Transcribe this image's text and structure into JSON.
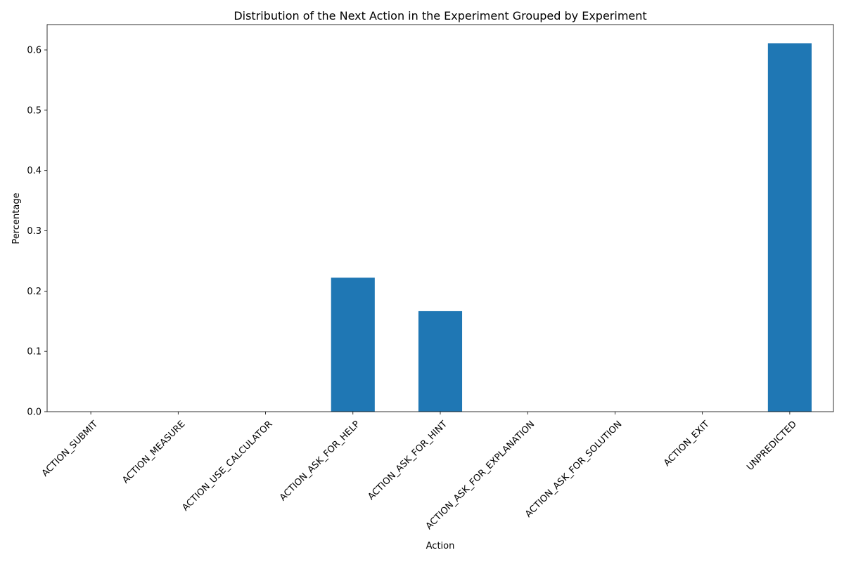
{
  "chart_data": {
    "type": "bar",
    "title": "Distribution of the Next Action in the Experiment Grouped by Experiment",
    "xlabel": "Action",
    "ylabel": "Percentage",
    "categories": [
      "ACTION_SUBMIT",
      "ACTION_MEASURE",
      "ACTION_USE_CALCULATOR",
      "ACTION_ASK_FOR_HELP",
      "ACTION_ASK_FOR_HINT",
      "ACTION_ASK_FOR_EXPLANATION",
      "ACTION_ASK_FOR_SOLUTION",
      "ACTION_EXIT",
      "UNPREDICTED"
    ],
    "values": [
      0.0,
      0.0,
      0.0,
      0.2222,
      0.1667,
      0.0,
      0.0,
      0.0,
      0.6111
    ],
    "ylim": [
      0,
      0.642
    ],
    "yticks": [
      0.0,
      0.1,
      0.2,
      0.3,
      0.4,
      0.5,
      0.6
    ],
    "ytick_labels": [
      "0.0",
      "0.1",
      "0.2",
      "0.3",
      "0.4",
      "0.5",
      "0.6"
    ],
    "bar_color": "#1f77b4",
    "grid": false,
    "legend": false,
    "xtick_rotation_deg": 45
  }
}
